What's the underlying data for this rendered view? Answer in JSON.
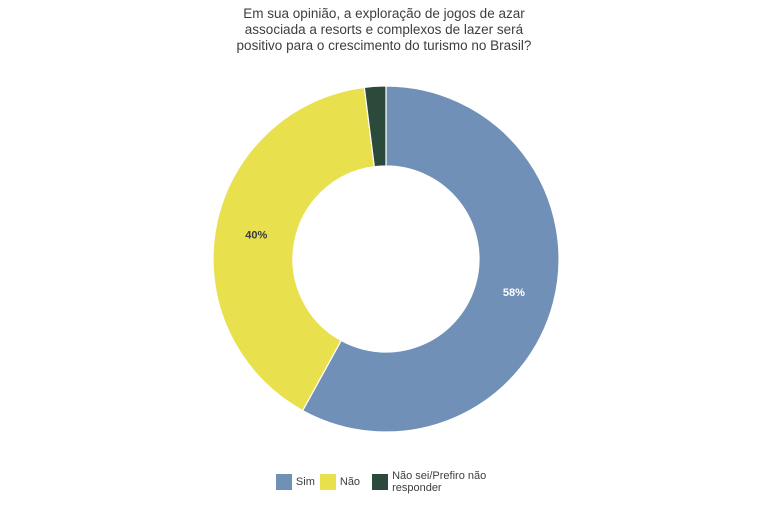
{
  "chart_data": {
    "type": "pie",
    "subtype": "donut",
    "title": "Em sua opinião, a exploração de jogos de azar associada a resorts e complexos de lazer será positivo para o crescimento do turismo no Brasil?",
    "title_lines": [
      "Em sua opinião, a exploração de jogos de azar",
      "associada a resorts e complexos de lazer será",
      "positivo para o crescimento do turismo no Brasil?"
    ],
    "slices": [
      {
        "label": "Sim",
        "value": 58,
        "display": "58%",
        "color": "#7090B7",
        "label_color": "#FFFFFF"
      },
      {
        "label": "Não",
        "value": 40,
        "display": "40%",
        "color": "#E9E04E",
        "label_color": "#3A3A3A"
      },
      {
        "label": "Não sei/Prefiro não responder",
        "value": 2,
        "display": "",
        "color": "#2B4A3B",
        "label_color": ""
      }
    ],
    "start_angle_deg": 0,
    "direction": "clockwise",
    "inner_radius_ratio": 0.537,
    "separator_color": "#FFFFFF",
    "legend_position": "bottom",
    "background": "#FFFFFF",
    "text_color": "#3E3E3E"
  }
}
